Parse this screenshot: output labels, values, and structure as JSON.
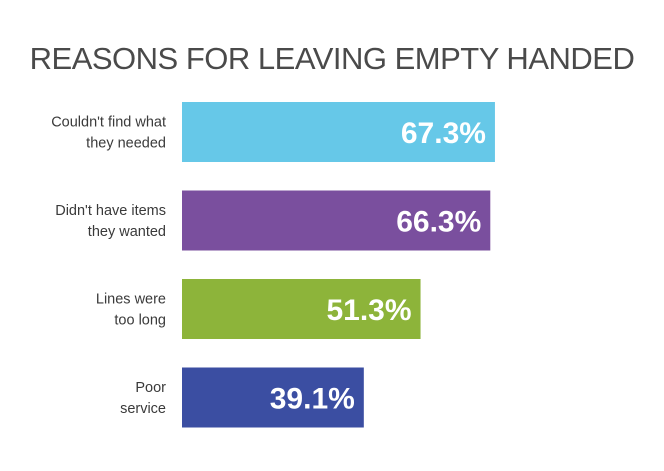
{
  "chart_data": {
    "type": "bar",
    "orientation": "horizontal",
    "title": "REASONS FOR LEAVING EMPTY HANDED",
    "categories": [
      [
        "Couldn't find what",
        "they needed"
      ],
      [
        "Didn't have items",
        "they wanted"
      ],
      [
        "Lines were",
        "too long"
      ],
      [
        "Poor",
        "service"
      ]
    ],
    "values": [
      67.3,
      66.3,
      51.3,
      39.1
    ],
    "value_labels": [
      "67.3%",
      "66.3%",
      "51.3%",
      "39.1%"
    ],
    "colors": [
      "#66c8e8",
      "#7a4f9e",
      "#8db43a",
      "#3b4ea2"
    ],
    "xlim": [
      0,
      100
    ],
    "grid": false,
    "legend": "none"
  }
}
